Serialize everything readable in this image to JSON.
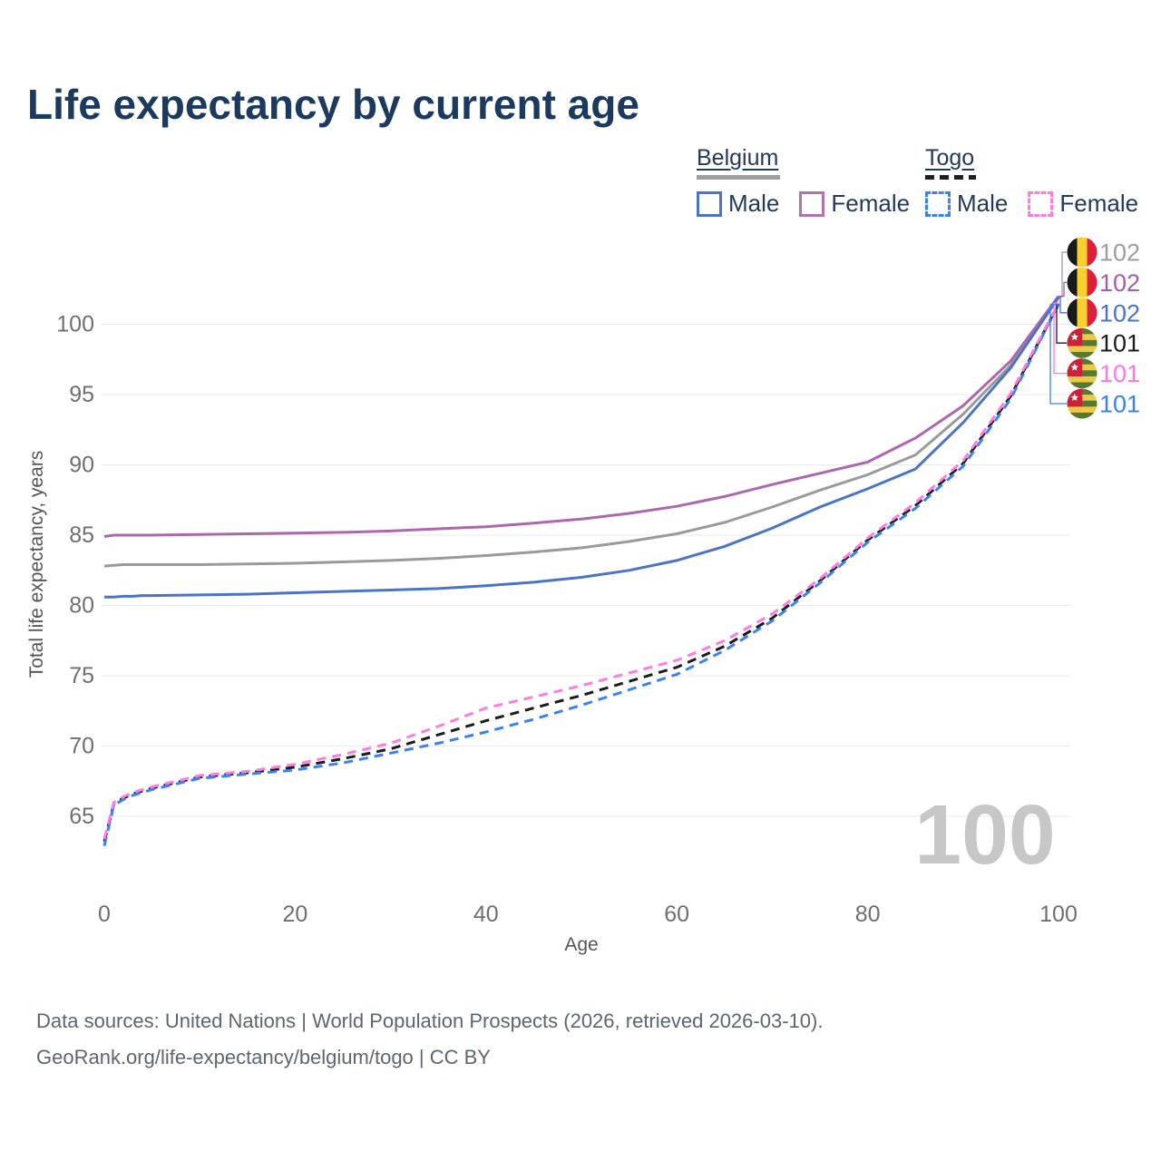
{
  "header": {
    "title": "Life expectancy by current age"
  },
  "legend": {
    "groups": [
      {
        "label": "Belgium",
        "style": "solid",
        "swatch_color": "#9e9e9e",
        "items": [
          {
            "label": "Male",
            "color": "#4a74c4"
          },
          {
            "label": "Female",
            "color": "#b172ae"
          }
        ]
      },
      {
        "label": "Togo",
        "style": "dashed",
        "swatch_color": "#1f1f1f",
        "items": [
          {
            "label": "Male",
            "color": "#3b82f0"
          },
          {
            "label": "Female",
            "color": "#ff7ce0"
          }
        ]
      }
    ]
  },
  "chart_data": {
    "type": "line",
    "title": "Life expectancy by current age",
    "xlabel": "Age",
    "ylabel": "Total life expectancy, years",
    "x_ticks": [
      0,
      20,
      40,
      60,
      80,
      100
    ],
    "y_ticks": [
      65,
      70,
      75,
      80,
      85,
      90,
      95,
      100
    ],
    "xlim": [
      0,
      100
    ],
    "ylim": [
      62.5,
      103
    ],
    "grid": "horizontal",
    "legend_position": "top-right",
    "age_watermark": "100",
    "ages": [
      0,
      1,
      2,
      3,
      4,
      5,
      10,
      15,
      20,
      25,
      30,
      35,
      40,
      45,
      50,
      55,
      60,
      65,
      70,
      75,
      80,
      85,
      90,
      95,
      100
    ],
    "series": [
      {
        "id": "belgium-male",
        "name": "Belgium Male",
        "country": "Belgium",
        "sex": "Male",
        "color": "#4a74c4",
        "style": "solid",
        "end_label": "102",
        "values": [
          80.6,
          80.6,
          80.65,
          80.65,
          80.7,
          80.7,
          80.75,
          80.8,
          80.9,
          81.0,
          81.1,
          81.2,
          81.4,
          81.65,
          82.0,
          82.5,
          83.2,
          84.2,
          85.5,
          87.0,
          88.3,
          89.7,
          93.0,
          96.9,
          101.9
        ]
      },
      {
        "id": "belgium-female",
        "name": "Belgium Female",
        "country": "Belgium",
        "sex": "Female",
        "color": "#ad68ad",
        "style": "solid",
        "end_label": "102",
        "values": [
          84.9,
          85.0,
          85.0,
          85.0,
          85.0,
          85.0,
          85.05,
          85.1,
          85.15,
          85.2,
          85.3,
          85.45,
          85.6,
          85.85,
          86.15,
          86.55,
          87.05,
          87.75,
          88.6,
          89.4,
          90.2,
          91.9,
          94.2,
          97.4,
          102.0
        ]
      },
      {
        "id": "belgium-total",
        "name": "Belgium Total",
        "country": "Belgium",
        "sex": "Total",
        "color": "#9a9a9a",
        "style": "solid",
        "end_label": "102",
        "values": [
          82.8,
          82.85,
          82.9,
          82.9,
          82.9,
          82.9,
          82.9,
          82.95,
          83.0,
          83.1,
          83.2,
          83.35,
          83.55,
          83.8,
          84.1,
          84.55,
          85.1,
          85.9,
          87.0,
          88.2,
          89.3,
          90.7,
          93.6,
          97.1,
          101.95
        ]
      },
      {
        "id": "togo-male",
        "name": "Togo Male",
        "country": "Togo",
        "sex": "Male",
        "color": "#3b82f0",
        "style": "dashed",
        "end_label": "101",
        "values": [
          62.9,
          65.8,
          66.2,
          66.5,
          66.7,
          66.9,
          67.7,
          68.0,
          68.3,
          68.8,
          69.5,
          70.2,
          71.0,
          71.9,
          72.9,
          74.0,
          75.1,
          76.8,
          78.9,
          81.6,
          84.5,
          86.9,
          89.9,
          94.7,
          101.4
        ]
      },
      {
        "id": "togo-female",
        "name": "Togo Female",
        "country": "Togo",
        "sex": "Female",
        "color": "#ff7ce0",
        "style": "dashed",
        "end_label": "101",
        "values": [
          63.4,
          66.0,
          66.4,
          66.7,
          66.9,
          67.1,
          67.9,
          68.2,
          68.7,
          69.4,
          70.2,
          71.4,
          72.7,
          73.5,
          74.3,
          75.2,
          76.1,
          77.5,
          79.4,
          81.9,
          84.8,
          87.3,
          90.3,
          95.1,
          101.5
        ]
      },
      {
        "id": "togo-total",
        "name": "Togo Total",
        "country": "Togo",
        "sex": "Total",
        "color": "#1c1c1c",
        "style": "dashed",
        "end_label": "101",
        "values": [
          63.2,
          65.9,
          66.3,
          66.6,
          66.8,
          67.0,
          67.8,
          68.1,
          68.5,
          69.1,
          69.8,
          70.8,
          71.8,
          72.7,
          73.6,
          74.6,
          75.6,
          77.1,
          79.1,
          81.75,
          84.65,
          87.1,
          90.1,
          94.9,
          101.45
        ]
      }
    ],
    "end_labels": [
      {
        "series": 2,
        "value": "102",
        "flag": "belgium",
        "color": "#9e9e9e"
      },
      {
        "series": 1,
        "value": "102",
        "flag": "belgium",
        "color": "#a25fa6"
      },
      {
        "series": 0,
        "value": "102",
        "flag": "belgium",
        "color": "#4a74c4"
      },
      {
        "series": 5,
        "value": "101",
        "flag": "togo",
        "color": "#1c1c1c"
      },
      {
        "series": 4,
        "value": "101",
        "flag": "togo",
        "color": "#ff77e3"
      },
      {
        "series": 3,
        "value": "101",
        "flag": "togo",
        "color": "#3b82f0"
      }
    ],
    "flag_colors": {
      "belgium": [
        "#1a1a1a",
        "#f9d12f",
        "#dd1f3e"
      ],
      "togo": [
        "#55792f",
        "#ecc94b",
        "#ce2036"
      ],
      "togo_star": "#ffffff"
    }
  },
  "footer": {
    "line1": "Data sources: United Nations | World Population Prospects (2026, retrieved 2026-03-10).",
    "line2": "GeoRank.org/life-expectancy/belgium/togo | CC BY"
  }
}
